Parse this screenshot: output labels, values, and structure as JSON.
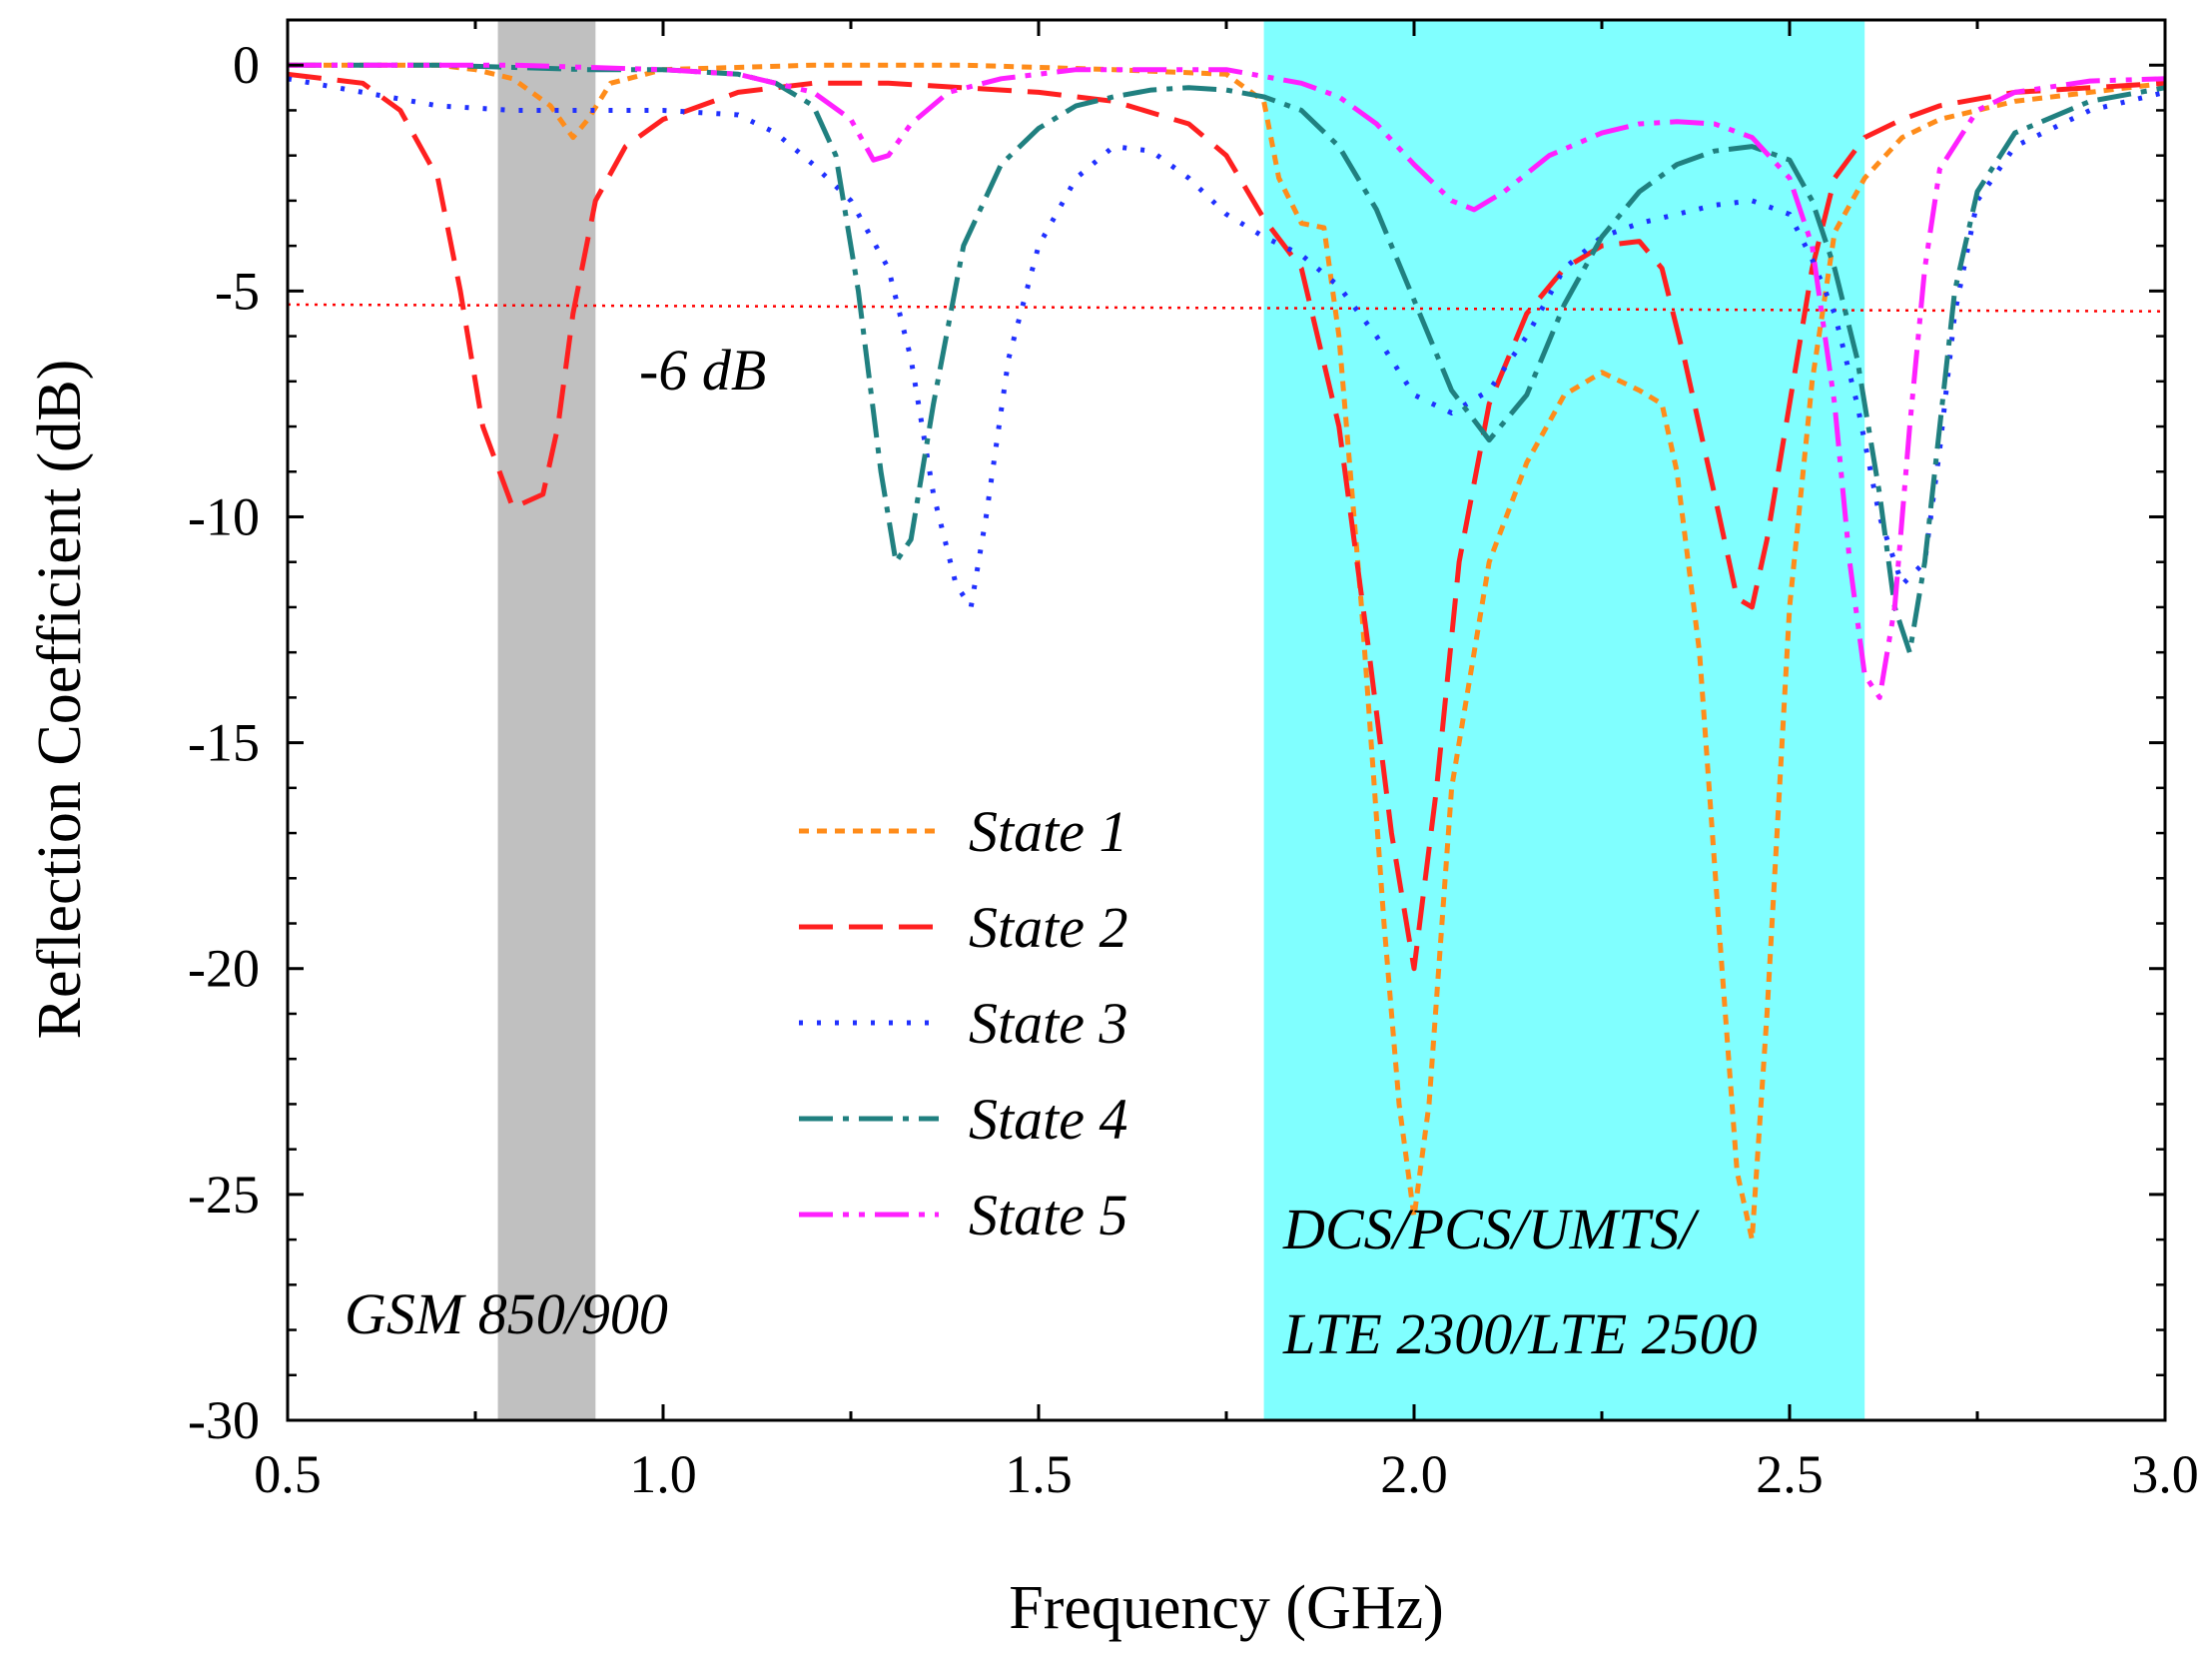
{
  "chart_data": {
    "type": "line",
    "title": "",
    "xlabel": "Frequency (GHz)",
    "ylabel": "Reflection Coefficient (dB)",
    "xlim": [
      0.5,
      3.0
    ],
    "ylim": [
      -30,
      1
    ],
    "xticks": [
      0.5,
      1.0,
      1.5,
      2.0,
      2.5,
      3.0
    ],
    "xtick_labels": [
      "0.5",
      "1.0",
      "1.5",
      "2.0",
      "2.5",
      "3.0"
    ],
    "yticks": [
      0,
      -5,
      -10,
      -15,
      -20,
      -25,
      -30
    ],
    "ytick_labels": [
      "0",
      "-5",
      "-10",
      "-15",
      "-20",
      "-25",
      "-30"
    ],
    "grid": false,
    "legend_position": "center-left",
    "bands": [
      {
        "name": "GSM 850/900",
        "x0": 0.78,
        "x1": 0.91,
        "color": "#c0c0c0"
      },
      {
        "name": "DCS/PCS/UMTS/ LTE 2300/LTE 2500",
        "x0": 1.8,
        "x1": 2.6,
        "color": "#80ffff"
      }
    ],
    "band_labels": {
      "gsm": "GSM 850/900",
      "dcs_line1": "DCS/PCS/UMTS/",
      "dcs_line2": "LTE 2300/LTE 2500"
    },
    "reference_line": {
      "label": "-6 dB",
      "y_start": -5.3,
      "y_end": -5.45,
      "color": "#ff0000"
    },
    "series": [
      {
        "name": "State 1",
        "color": "#ff8c1a",
        "dash": "10,8",
        "x": [
          0.5,
          0.6,
          0.7,
          0.75,
          0.8,
          0.85,
          0.88,
          0.9,
          0.93,
          1.0,
          1.2,
          1.4,
          1.6,
          1.75,
          1.8,
          1.82,
          1.85,
          1.88,
          1.9,
          1.93,
          1.96,
          1.98,
          2.0,
          2.02,
          2.05,
          2.1,
          2.15,
          2.2,
          2.25,
          2.3,
          2.33,
          2.35,
          2.38,
          2.41,
          2.43,
          2.45,
          2.47,
          2.5,
          2.53,
          2.56,
          2.6,
          2.65,
          2.7,
          2.8,
          2.9,
          3.0
        ],
        "y": [
          0,
          0,
          0,
          -0.1,
          -0.3,
          -0.9,
          -1.6,
          -1.2,
          -0.4,
          -0.1,
          0,
          0,
          -0.1,
          -0.2,
          -0.8,
          -2.5,
          -3.5,
          -3.6,
          -6,
          -12,
          -19,
          -23,
          -25.5,
          -23,
          -16,
          -11,
          -8.8,
          -7.3,
          -6.8,
          -7.2,
          -7.5,
          -9,
          -13,
          -20,
          -24.5,
          -26,
          -21,
          -12,
          -7,
          -3.7,
          -2.5,
          -1.6,
          -1.2,
          -0.8,
          -0.6,
          -0.4
        ]
      },
      {
        "name": "State 2",
        "color": "#ff2020",
        "dash": "34,16",
        "x": [
          0.5,
          0.6,
          0.65,
          0.7,
          0.73,
          0.76,
          0.8,
          0.84,
          0.86,
          0.88,
          0.91,
          0.95,
          1.0,
          1.1,
          1.2,
          1.3,
          1.4,
          1.5,
          1.6,
          1.7,
          1.75,
          1.8,
          1.85,
          1.9,
          1.94,
          1.97,
          2.0,
          2.03,
          2.06,
          2.1,
          2.15,
          2.2,
          2.25,
          2.3,
          2.33,
          2.36,
          2.4,
          2.43,
          2.45,
          2.47,
          2.5,
          2.53,
          2.56,
          2.6,
          2.65,
          2.7,
          2.8,
          2.9,
          3.0
        ],
        "y": [
          -0.2,
          -0.4,
          -1.0,
          -2.5,
          -5,
          -8,
          -9.8,
          -9.5,
          -8,
          -5.5,
          -3,
          -1.8,
          -1.2,
          -0.6,
          -0.4,
          -0.4,
          -0.5,
          -0.6,
          -0.8,
          -1.3,
          -2.0,
          -3.4,
          -4.5,
          -8,
          -13,
          -17,
          -20,
          -16,
          -11,
          -7.5,
          -5.5,
          -4.5,
          -4,
          -3.9,
          -4.5,
          -6.5,
          -9.5,
          -11.8,
          -12,
          -10.5,
          -7.5,
          -4.5,
          -2.5,
          -1.6,
          -1.2,
          -0.9,
          -0.6,
          -0.5,
          -0.4
        ]
      },
      {
        "name": "State 3",
        "color": "#2030ff",
        "dash": "4,14",
        "x": [
          0.5,
          0.6,
          0.7,
          0.8,
          0.9,
          1.0,
          1.1,
          1.15,
          1.2,
          1.25,
          1.3,
          1.33,
          1.36,
          1.39,
          1.41,
          1.43,
          1.46,
          1.5,
          1.55,
          1.6,
          1.65,
          1.7,
          1.75,
          1.8,
          1.85,
          1.9,
          1.95,
          2.0,
          2.05,
          2.1,
          2.15,
          2.2,
          2.25,
          2.3,
          2.35,
          2.4,
          2.45,
          2.5,
          2.53,
          2.56,
          2.59,
          2.62,
          2.65,
          2.68,
          2.7,
          2.72,
          2.75,
          2.8,
          2.9,
          3.0
        ],
        "y": [
          -0.3,
          -0.6,
          -0.9,
          -1.0,
          -1.0,
          -1.0,
          -1.1,
          -1.5,
          -2.2,
          -3.0,
          -4.5,
          -6.5,
          -9.5,
          -11.5,
          -12,
          -10,
          -6.5,
          -4,
          -2.5,
          -1.8,
          -1.9,
          -2.5,
          -3.3,
          -3.8,
          -4.2,
          -4.9,
          -6,
          -7.3,
          -7.7,
          -7.2,
          -6,
          -4.5,
          -3.8,
          -3.5,
          -3.3,
          -3.1,
          -3.0,
          -3.3,
          -4.3,
          -5.5,
          -7.5,
          -10,
          -11.5,
          -11,
          -8.5,
          -5.5,
          -3,
          -1.8,
          -1.0,
          -0.6
        ]
      },
      {
        "name": "State 4",
        "color": "#208080",
        "dash": "34,10,6,10",
        "x": [
          0.5,
          0.7,
          0.9,
          1.0,
          1.1,
          1.15,
          1.2,
          1.23,
          1.26,
          1.29,
          1.31,
          1.33,
          1.36,
          1.4,
          1.45,
          1.5,
          1.55,
          1.6,
          1.65,
          1.7,
          1.75,
          1.8,
          1.85,
          1.9,
          1.95,
          2.0,
          2.05,
          2.1,
          2.15,
          2.2,
          2.25,
          2.3,
          2.35,
          2.4,
          2.45,
          2.5,
          2.53,
          2.56,
          2.59,
          2.62,
          2.64,
          2.66,
          2.68,
          2.7,
          2.72,
          2.75,
          2.8,
          2.9,
          3.0
        ],
        "y": [
          0,
          0,
          -0.1,
          -0.1,
          -0.2,
          -0.4,
          -0.9,
          -2,
          -5,
          -9,
          -11,
          -10.5,
          -7.5,
          -4,
          -2.2,
          -1.4,
          -0.9,
          -0.7,
          -0.55,
          -0.5,
          -0.55,
          -0.7,
          -1.0,
          -1.8,
          -3.2,
          -5.2,
          -7.2,
          -8.3,
          -7.3,
          -5.3,
          -3.8,
          -2.8,
          -2.2,
          -1.9,
          -1.8,
          -2.1,
          -3.0,
          -4.5,
          -6.5,
          -9.5,
          -12,
          -13,
          -11,
          -8,
          -5,
          -2.8,
          -1.5,
          -0.8,
          -0.5
        ]
      },
      {
        "name": "State 5",
        "color": "#ff20ff",
        "dash": "34,10,6,10,6,10",
        "x": [
          0.5,
          0.8,
          1.0,
          1.1,
          1.2,
          1.25,
          1.28,
          1.3,
          1.33,
          1.38,
          1.45,
          1.55,
          1.65,
          1.75,
          1.85,
          1.9,
          1.95,
          2.0,
          2.05,
          2.08,
          2.12,
          2.18,
          2.25,
          2.3,
          2.35,
          2.4,
          2.45,
          2.5,
          2.53,
          2.56,
          2.58,
          2.6,
          2.62,
          2.64,
          2.66,
          2.68,
          2.7,
          2.75,
          2.8,
          2.9,
          3.0
        ],
        "y": [
          0,
          0,
          -0.1,
          -0.2,
          -0.6,
          -1.2,
          -2.1,
          -2.0,
          -1.3,
          -0.6,
          -0.3,
          -0.1,
          -0.1,
          -0.1,
          -0.4,
          -0.7,
          -1.3,
          -2.2,
          -3.0,
          -3.2,
          -2.8,
          -2.0,
          -1.5,
          -1.3,
          -1.25,
          -1.3,
          -1.6,
          -2.5,
          -4,
          -7.5,
          -11,
          -13.5,
          -14,
          -12,
          -8,
          -4.5,
          -2.3,
          -1.0,
          -0.6,
          -0.35,
          -0.3
        ]
      }
    ]
  }
}
